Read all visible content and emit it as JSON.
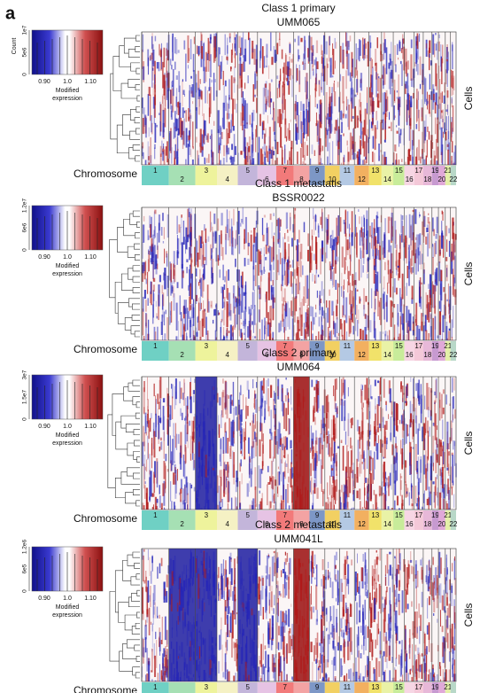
{
  "figure_label": "a",
  "chromosomes": [
    "1",
    "2",
    "3",
    "4",
    "5",
    "6",
    "7",
    "8",
    "9",
    "10",
    "11",
    "12",
    "13",
    "14",
    "15",
    "16",
    "17",
    "18",
    "19",
    "20",
    "21",
    "22"
  ],
  "legend_count_label": "Count",
  "legend_label": [
    "Modified",
    "expression"
  ],
  "axis_label": "Chromosome",
  "row_label": "Cells",
  "scale_ticks": [
    "0.90",
    "1.0",
    "1.10"
  ],
  "panels": [
    {
      "title": "Class 1 primary",
      "sample": "UMM065",
      "count_ticks": [
        "0",
        "5e6",
        "1e7"
      ]
    },
    {
      "title": "Class 1 metastatis",
      "sample": "BSSR0022",
      "count_ticks": [
        "0",
        "6e6",
        "1.2e7"
      ]
    },
    {
      "title": "Class 2 primary",
      "sample": "UMM064",
      "count_ticks": [
        "0",
        "1.5e7",
        "3e7"
      ]
    },
    {
      "title": "Class 2 metastatis",
      "sample": "UMM041L",
      "count_ticks": [
        "0",
        "6e5",
        "1.2e6"
      ]
    }
  ]
}
